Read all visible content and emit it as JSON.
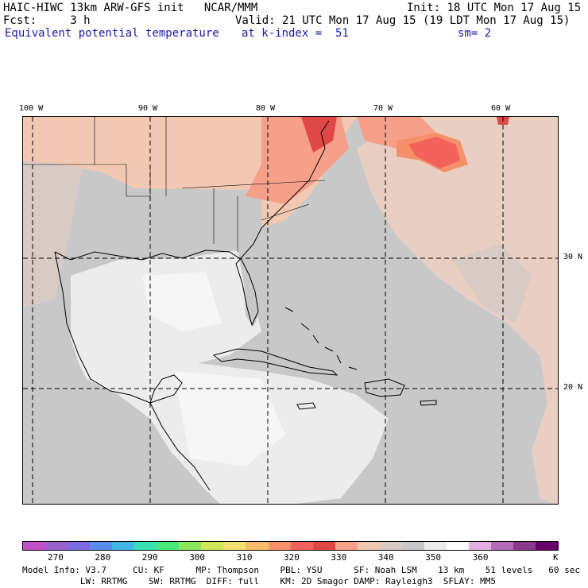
{
  "header": {
    "line1_left": "HAIC-HIWC 13km ARW-GFS init   NCAR/MMM",
    "line1_right": "Init: 18 UTC Mon 17 Aug 15",
    "line2_left": "Fcst:     3 h",
    "line2_right": "Valid: 21 UTC Mon 17 Aug 15 (19 LDT Mon 17 Aug 15)",
    "line3_field": "Equivalent potential temperature",
    "line3_level": "at k-index =  51",
    "line3_smooth": "sm= 2"
  },
  "map": {
    "lon_labels": [
      "100 W",
      "90 W",
      "80 W",
      "70 W",
      "60 W"
    ],
    "lat_labels": [
      "30 N",
      "20 N"
    ],
    "land_color": "#c8c8c8",
    "gulf_color": "#ececec"
  },
  "colorbar": {
    "colors": [
      "#c250c8",
      "#9a62cf",
      "#7c6ce3",
      "#5a8cef",
      "#42b8e8",
      "#3ae0b2",
      "#4be87c",
      "#8ae85a",
      "#cfe85a",
      "#f2e070",
      "#f6bc6a",
      "#f6906a",
      "#f2625a",
      "#e04848",
      "#f6a08a",
      "#f0c8b0",
      "#d8cac4",
      "#c8c8c8",
      "#ececec",
      "#ffffff",
      "#e0b0e0",
      "#b46ab4",
      "#8a3a8a",
      "#6a006a"
    ],
    "tick_labels": [
      "270",
      "280",
      "290",
      "300",
      "310",
      "320",
      "330",
      "340",
      "350",
      "360"
    ],
    "unit": "K"
  },
  "info": {
    "line1": "Model Info: V3.7     CU: KF      MP: Thompson    PBL: YSU      SF: Noah LSM    13 km    51 levels   60 sec",
    "line2": "           LW: RRTMG    SW: RRTMG  DIFF: full    KM: 2D Smagor DAMP: Rayleigh3  SFLAY: MM5"
  }
}
